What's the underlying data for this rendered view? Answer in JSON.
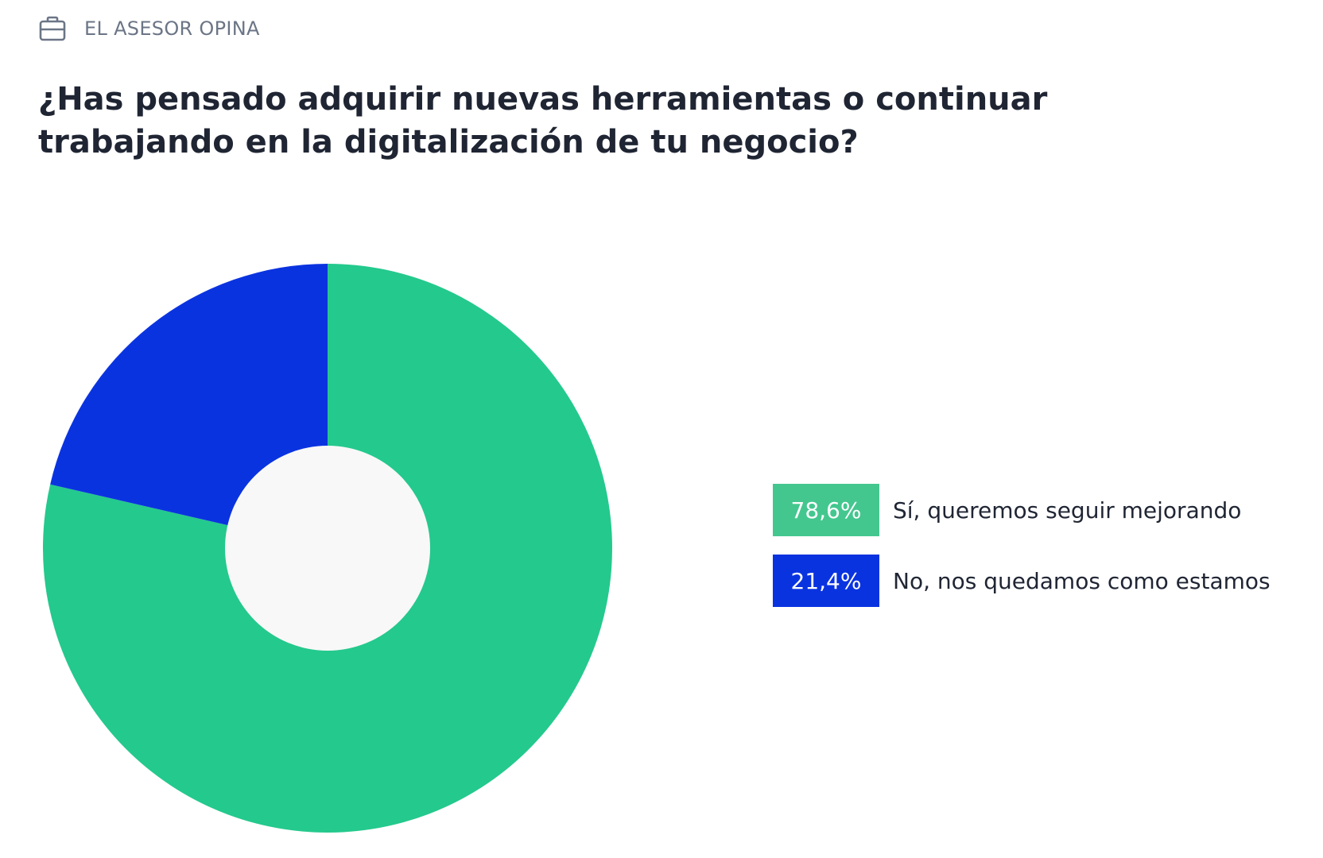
{
  "header": {
    "section_label": "EL ASESOR OPINA",
    "icon": "briefcase-icon"
  },
  "question": "¿Has pensado adquirir nuevas herramientas o continuar trabajando en la digitalización de tu negocio?",
  "chart_data": {
    "type": "pie",
    "variant": "donut",
    "title": "¿Has pensado adquirir nuevas herramientas o continuar trabajando en la digitalización de tu negocio?",
    "slices": [
      {
        "label": "Sí, queremos seguir mejorando",
        "value": 78.6,
        "display": "78,6%",
        "color": "#24c98d",
        "legend_color": "#44c78f"
      },
      {
        "label": "No, nos quedamos como estamos",
        "value": 21.4,
        "display": "21,4%",
        "color": "#0a33e0",
        "legend_color": "#0a33e0"
      }
    ],
    "start_angle": "12 o'clock",
    "direction": "clockwise",
    "legend_position": "right",
    "center_color": "#f8f8f8"
  }
}
